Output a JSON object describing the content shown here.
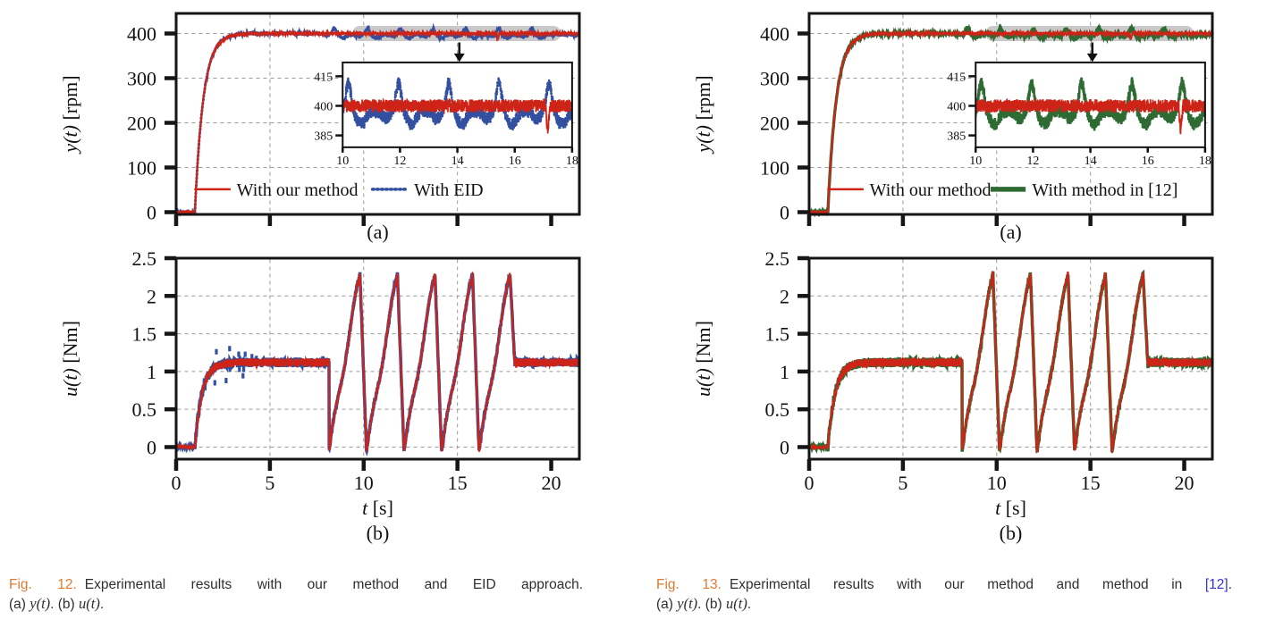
{
  "page": {
    "background": "#ffffff"
  },
  "chart_data": [
    {
      "id": "figure-12",
      "colors": {
        "primary": "#ce2418",
        "secondary": "#3350a0",
        "axis": "#161616",
        "grid": "#9a9a9a",
        "highlight": "#c3c3c3",
        "arrow": "#111111",
        "tick_text": "#111111",
        "caption_tag": "#e07a30",
        "caption_link": "#3434d8"
      },
      "panel_a": {
        "type": "line",
        "panel_label": "(a)",
        "ylabel_var": "y(t)",
        "ylabel_unit": " [rpm]",
        "xlim": [
          0,
          21.5
        ],
        "ylim": [
          -5,
          445
        ],
        "xticks": [
          0,
          5,
          10,
          15,
          20
        ],
        "yticks": [
          0,
          100,
          200,
          300,
          400
        ],
        "ytick_labels": [
          "0",
          "100",
          "200",
          "300",
          "400"
        ],
        "x_gridlines": [
          5,
          10,
          15
        ],
        "y_gridlines": [
          100,
          200,
          300,
          400
        ],
        "grid": true,
        "legend": [
          {
            "label": "With our method",
            "style": "solid"
          },
          {
            "label": "With EID",
            "style": "dotted"
          }
        ],
        "signal": {
          "step_time": 1.0,
          "rise_tau": 0.45,
          "setpoint": 400,
          "noise": 3.5,
          "cmp_baseline_offset": -2.5,
          "bump_start": 8.45,
          "bump_period": 1.75,
          "bump_count": 7,
          "bump_peak": 14,
          "bump_dip": -7,
          "spike": {
            "t": 17.15,
            "dv": -13
          }
        },
        "highlight": {
          "x0_frac": 0.437,
          "x1_frac": 0.954,
          "value": 400
        },
        "arrow_t": 15.1,
        "inset": {
          "xlim": [
            10,
            18
          ],
          "ylim": [
            379,
            422
          ],
          "xticks": [
            10,
            12,
            14,
            16,
            18
          ],
          "xtick_labels": [
            "10",
            "12",
            "14",
            "16",
            "18"
          ],
          "yticks": [
            385,
            400,
            415
          ],
          "ytick_labels": [
            "385",
            "400",
            "415"
          ]
        }
      },
      "panel_b": {
        "type": "line",
        "panel_label": "(b)",
        "ylabel_var": "u(t)",
        "ylabel_unit": " [Nm]",
        "xlabel_var": "t",
        "xlabel_unit": " [s]",
        "xlim": [
          0,
          21.5
        ],
        "ylim": [
          -0.16,
          2.5
        ],
        "xticks": [
          0,
          5,
          10,
          15,
          20
        ],
        "xtick_labels": [
          "0",
          "5",
          "10",
          "15",
          "20"
        ],
        "yticks": [
          0,
          0.5,
          1,
          1.5,
          2,
          2.5
        ],
        "ytick_labels": [
          "0",
          "0.5",
          "1",
          "1.5",
          "2",
          "2.5"
        ],
        "x_gridlines": [
          5,
          10,
          15
        ],
        "y_gridlines": [
          0,
          0.5,
          1,
          1.5,
          2
        ],
        "grid": true,
        "signal": {
          "step_time": 1.0,
          "level": 1.12,
          "rise_tau": 0.38,
          "noise": 0.055,
          "saw_start": 8.15,
          "saw_period": 2.0,
          "saw_rise": 1.65,
          "saw_min": -0.05,
          "saw_max": 2.3,
          "cycles": 5,
          "tail_level": 1.12
        },
        "outliers": {
          "count": 14,
          "t0": 1.7,
          "t1": 4.3,
          "spread": 0.24
        }
      },
      "caption": {
        "line1": [
          {
            "t": "Fig. 12.",
            "s": "tag"
          },
          {
            "t": "Experimental results with our method and EID approach.",
            "s": "plain"
          }
        ],
        "line2": [
          {
            "t": "(a) ",
            "s": "plain"
          },
          {
            "t": "y(t)",
            "s": "math"
          },
          {
            "t": ". (b) ",
            "s": "plain"
          },
          {
            "t": "u(t)",
            "s": "math"
          },
          {
            "t": ".",
            "s": "plain"
          }
        ]
      }
    },
    {
      "id": "figure-13",
      "colors": {
        "primary": "#ce2418",
        "secondary": "#2e6b33",
        "axis": "#161616",
        "grid": "#9a9a9a",
        "highlight": "#c3c3c3",
        "arrow": "#111111",
        "tick_text": "#111111",
        "caption_tag": "#e07a30",
        "caption_link": "#3434d8"
      },
      "panel_a": {
        "type": "line",
        "panel_label": "(a)",
        "ylabel_var": "y(t)",
        "ylabel_unit": " [rpm]",
        "xlim": [
          0,
          21.5
        ],
        "ylim": [
          -5,
          445
        ],
        "xticks": [
          0,
          5,
          10,
          15,
          20
        ],
        "yticks": [
          0,
          100,
          200,
          300,
          400
        ],
        "ytick_labels": [
          "0",
          "100",
          "200",
          "300",
          "400"
        ],
        "x_gridlines": [
          5,
          10,
          15
        ],
        "y_gridlines": [
          100,
          200,
          300,
          400
        ],
        "grid": true,
        "legend": [
          {
            "label": "With our method",
            "style": "solid"
          },
          {
            "label": "With method in [12]",
            "style": "thick"
          }
        ],
        "signal": {
          "step_time": 1.0,
          "rise_tau": 0.45,
          "setpoint": 400,
          "noise": 3.5,
          "cmp_baseline_offset": -2.5,
          "bump_start": 8.45,
          "bump_period": 1.75,
          "bump_count": 7,
          "bump_peak": 14,
          "bump_dip": -7,
          "spike": {
            "t": 17.15,
            "dv": -13
          }
        },
        "highlight": {
          "x0_frac": 0.437,
          "x1_frac": 0.954,
          "value": 400
        },
        "arrow_t": 15.1,
        "inset": {
          "xlim": [
            10,
            18
          ],
          "ylim": [
            379,
            422
          ],
          "xticks": [
            10,
            12,
            14,
            16,
            18
          ],
          "xtick_labels": [
            "10",
            "12",
            "14",
            "16",
            "18"
          ],
          "yticks": [
            385,
            400,
            415
          ],
          "ytick_labels": [
            "385",
            "400",
            "415"
          ]
        }
      },
      "panel_b": {
        "type": "line",
        "panel_label": "(b)",
        "ylabel_var": "u(t)",
        "ylabel_unit": " [Nm]",
        "xlabel_var": "t",
        "xlabel_unit": " [s]",
        "xlim": [
          0,
          21.5
        ],
        "ylim": [
          -0.16,
          2.5
        ],
        "xticks": [
          0,
          5,
          10,
          15,
          20
        ],
        "xtick_labels": [
          "0",
          "5",
          "10",
          "15",
          "20"
        ],
        "yticks": [
          0,
          0.5,
          1,
          1.5,
          2,
          2.5
        ],
        "ytick_labels": [
          "0",
          "0.5",
          "1",
          "1.5",
          "2",
          "2.5"
        ],
        "x_gridlines": [
          5,
          10,
          15
        ],
        "y_gridlines": [
          0,
          0.5,
          1,
          1.5,
          2
        ],
        "grid": true,
        "signal": {
          "step_time": 1.0,
          "level": 1.12,
          "rise_tau": 0.38,
          "noise": 0.055,
          "saw_start": 8.15,
          "saw_period": 2.0,
          "saw_rise": 1.65,
          "saw_min": -0.05,
          "saw_max": 2.3,
          "cycles": 5,
          "tail_level": 1.12
        },
        "outliers": null
      },
      "caption": {
        "line1": [
          {
            "t": "Fig. 13.",
            "s": "tag"
          },
          {
            "t": "Experimental results with our method and method in ",
            "s": "plain"
          },
          {
            "t": "[12]",
            "s": "link"
          },
          {
            "t": ".",
            "s": "plain"
          }
        ],
        "line2": [
          {
            "t": "(a) ",
            "s": "plain"
          },
          {
            "t": "y(t)",
            "s": "math"
          },
          {
            "t": ". (b) ",
            "s": "plain"
          },
          {
            "t": "u(t)",
            "s": "math"
          },
          {
            "t": ".",
            "s": "plain"
          }
        ]
      }
    }
  ]
}
